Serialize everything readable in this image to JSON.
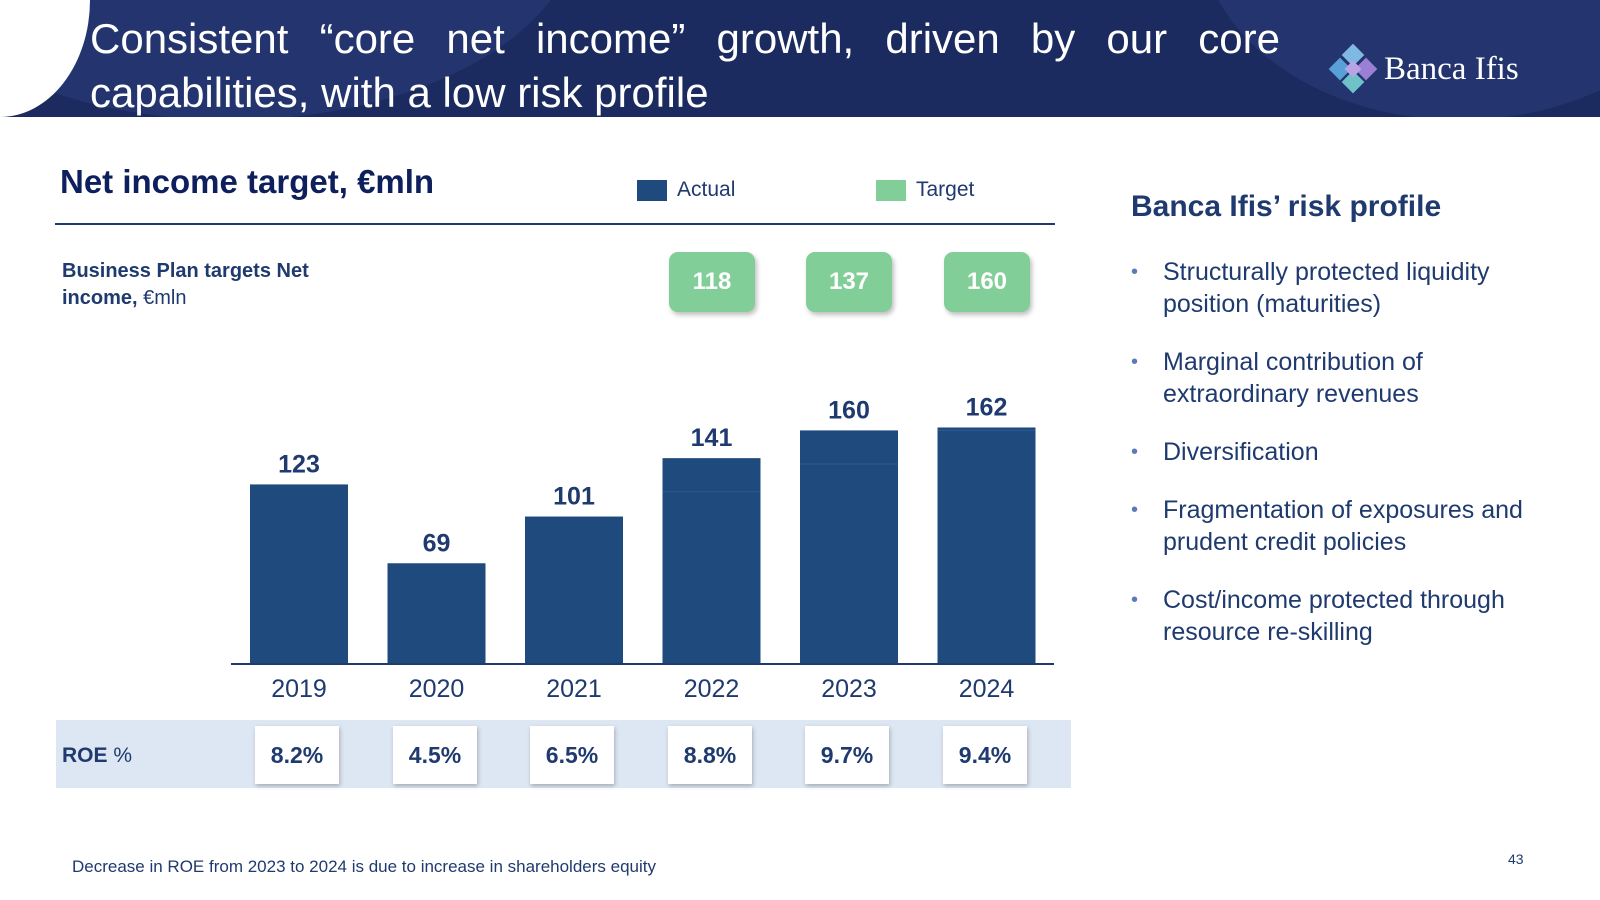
{
  "slide": {
    "title": "Consistent “core net income” growth, driven by our core capabilities, with a low risk profile",
    "logo_text": "Banca Ifis",
    "chart_heading": "Net income target, €mln",
    "bp_label_bold": "Business Plan targets Net income,",
    "bp_label_unit": "€mln",
    "roe_label_bold": "ROE",
    "roe_label_unit": "%",
    "footnote": "Decrease in ROE from 2023 to 2024 is due to increase in shareholders equity",
    "page_number": "43"
  },
  "colors": {
    "header": "#1c2b5f",
    "actual": "#1f4a7d",
    "target": "#82ce99",
    "text": "#1f3a6f",
    "roe_band": "#dde6f3"
  },
  "chart_data": {
    "type": "bar",
    "title": "Net income target, €mln",
    "categories": [
      "2019",
      "2020",
      "2021",
      "2022",
      "2023",
      "2024"
    ],
    "series": [
      {
        "name": "Actual",
        "values": [
          123,
          69,
          101,
          141,
          160,
          162
        ]
      },
      {
        "name": "Target",
        "values": [
          null,
          null,
          null,
          118,
          137,
          160
        ]
      }
    ],
    "legend": [
      "Actual",
      "Target"
    ],
    "legend_position": "top",
    "ylim": [
      0,
      175
    ],
    "grid": false,
    "roe_percent": [
      8.2,
      4.5,
      6.5,
      8.8,
      9.7,
      9.4
    ],
    "roe_labels": [
      "8.2%",
      "4.5%",
      "6.5%",
      "8.8%",
      "9.7%",
      "9.4%"
    ],
    "target_labels": [
      "118",
      "137",
      "160"
    ]
  },
  "risk_profile": {
    "title": "Banca Ifis’ risk profile",
    "items": [
      "Structurally protected liquidity position (maturities)",
      "Marginal contribution of extraordinary revenues",
      "Diversification",
      "Fragmentation of exposures and prudent credit policies",
      "Cost/income protected through resource re-skilling"
    ]
  }
}
